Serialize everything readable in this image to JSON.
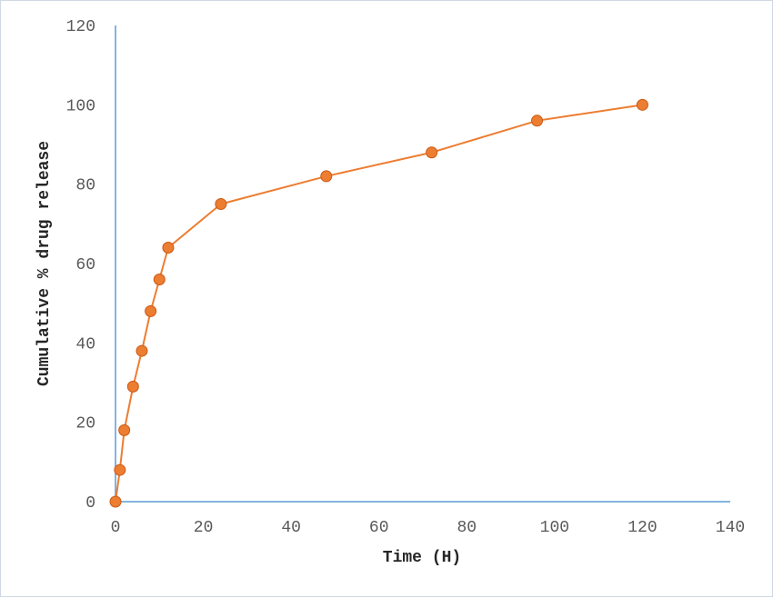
{
  "chart_data": {
    "type": "line",
    "title": "",
    "xlabel": "Time (H)",
    "ylabel": "Cumulative % drug release",
    "xlim": [
      0,
      140
    ],
    "ylim": [
      0,
      120
    ],
    "xticks": [
      0,
      20,
      40,
      60,
      80,
      100,
      120,
      140
    ],
    "yticks": [
      0,
      20,
      40,
      60,
      80,
      100,
      120
    ],
    "grid": false,
    "legend": "none",
    "series": [
      {
        "x": [
          0,
          1,
          2,
          4,
          6,
          8,
          10,
          12,
          24,
          48,
          72,
          96,
          120
        ],
        "y": [
          0,
          8,
          18,
          29,
          38,
          48,
          56,
          64,
          75,
          82,
          88,
          96,
          100
        ],
        "color": "#ED7D31"
      }
    ],
    "axis_color": "#5B9BD5"
  }
}
